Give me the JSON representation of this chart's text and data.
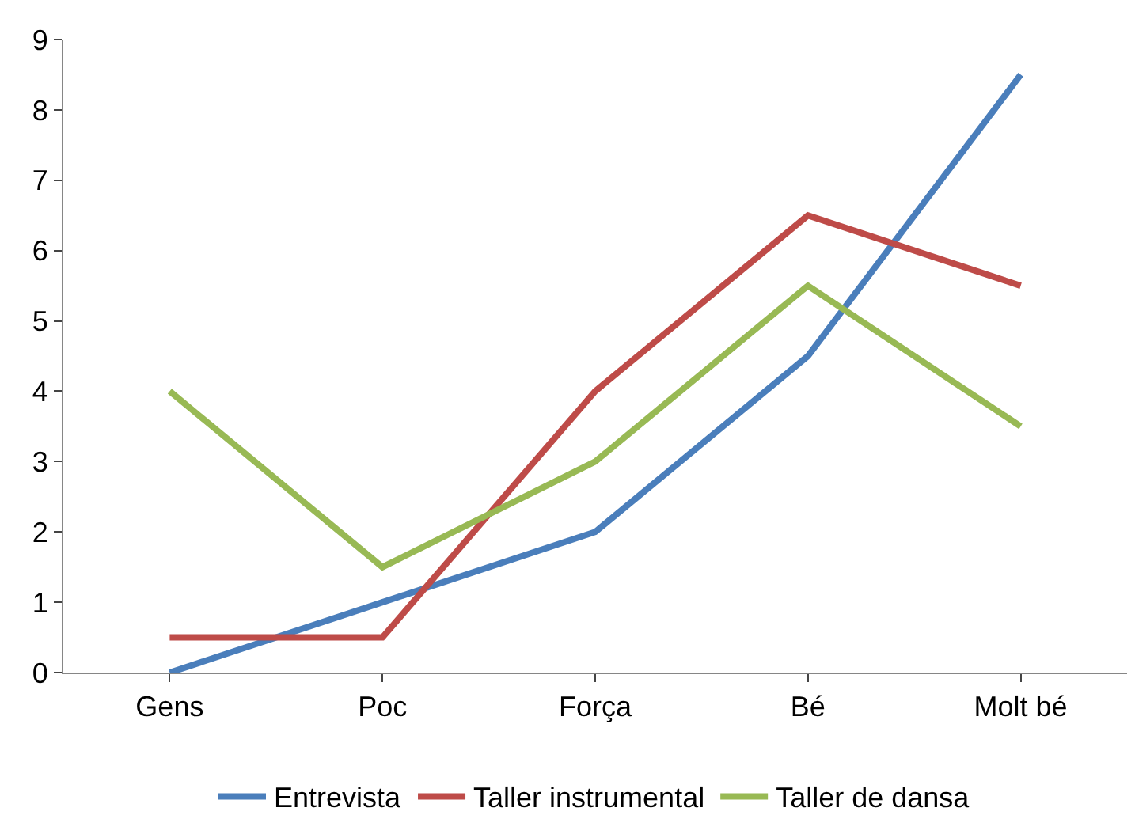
{
  "chart_data": {
    "type": "line",
    "categories": [
      "Gens",
      "Poc",
      "Força",
      "Bé",
      "Molt bé"
    ],
    "series": [
      {
        "name": "Entrevista",
        "color": "#4a7ebb",
        "values": [
          0,
          1,
          2,
          4.5,
          8.5
        ]
      },
      {
        "name": "Taller instrumental",
        "color": "#be4b48",
        "values": [
          0.5,
          0.5,
          4,
          6.5,
          5.5
        ]
      },
      {
        "name": "Taller de dansa",
        "color": "#98b954",
        "values": [
          4,
          1.5,
          3,
          5.5,
          3.5
        ]
      }
    ],
    "ylim": [
      0,
      9
    ],
    "yticks": [
      0,
      1,
      2,
      3,
      4,
      5,
      6,
      7,
      8,
      9
    ],
    "legend": "bottom",
    "marker": "none",
    "line_style": "solid"
  }
}
